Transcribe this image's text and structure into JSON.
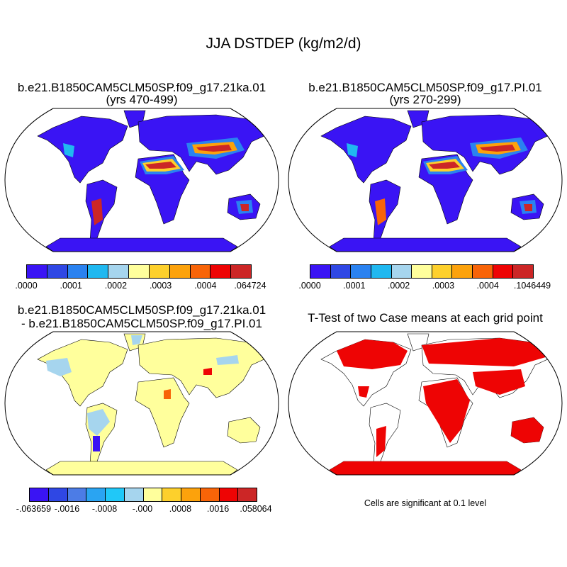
{
  "main_title": "JJA DSTDEP (kg/m2/d)",
  "panels": {
    "case1": {
      "title": "b.e21.B1850CAM5CLM50SP.f09_g17.21ka.01",
      "subtitle": "(yrs 470-499)",
      "colorbar": {
        "colors": [
          "#3a14f4",
          "#2f47e4",
          "#2a82f0",
          "#20b8f0",
          "#a6d5ee",
          "#ffff9c",
          "#fdd02c",
          "#fca20c",
          "#f86408",
          "#ee0404",
          "#cc2626"
        ],
        "labels": [
          ".0000",
          ".0001",
          ".0002",
          ".0003",
          ".0004",
          ".064724"
        ]
      }
    },
    "case2": {
      "title": "b.e21.B1850CAM5CLM50SP.f09_g17.PI.01",
      "subtitle": "(yrs 270-299)",
      "colorbar": {
        "colors": [
          "#3a14f4",
          "#2f47e4",
          "#2a82f0",
          "#20b8f0",
          "#a6d5ee",
          "#ffff9c",
          "#fdd02c",
          "#fca20c",
          "#f86408",
          "#ee0404",
          "#cc2626"
        ],
        "labels": [
          ".0000",
          ".0001",
          ".0002",
          ".0003",
          ".0004",
          ".1046449"
        ]
      }
    },
    "diff": {
      "title_line1": "b.e21.B1850CAM5CLM50SP.f09_g17.21ka.01",
      "title_line2": "- b.e21.B1850CAM5CLM50SP.f09_g17.PI.01",
      "colorbar": {
        "colors": [
          "#3a14f4",
          "#2f47e4",
          "#4c7ce6",
          "#2aa4f2",
          "#20c8f8",
          "#a6d5ee",
          "#ffff9c",
          "#fdd02c",
          "#fca20c",
          "#f86408",
          "#ee0404",
          "#cc2626"
        ],
        "labels": [
          "-.063659",
          "-.0016",
          "-.0008",
          "-.000",
          ".0008",
          ".0016",
          ".058064"
        ]
      }
    },
    "ttest": {
      "title": "T-Test of two Case means at each grid point",
      "note": "Cells are significant at 0.1 level"
    }
  }
}
